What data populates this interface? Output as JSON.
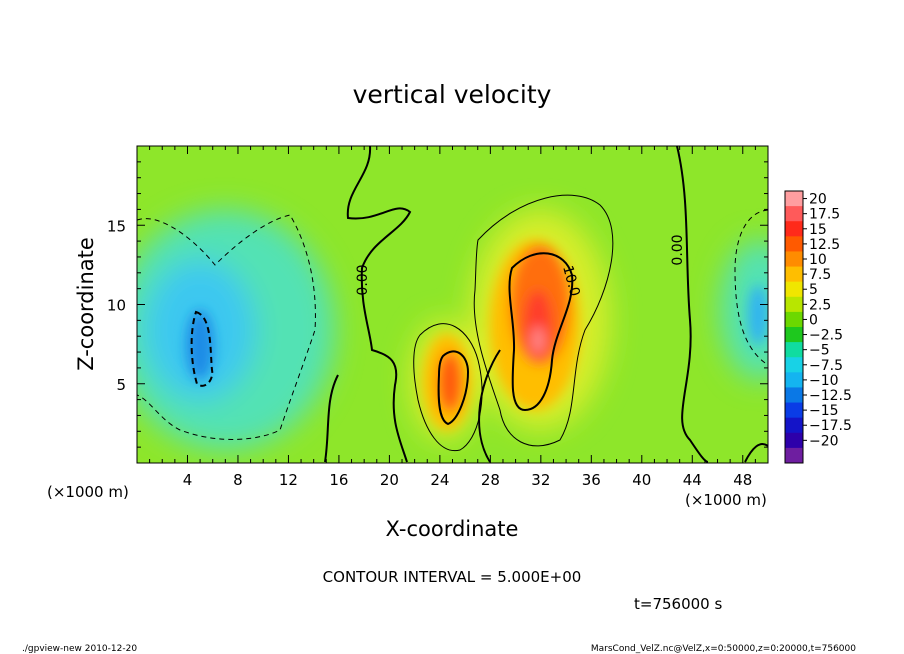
{
  "chart_data": {
    "type": "heatmap",
    "title": "vertical velocity",
    "xlabel": "X-coordinate",
    "ylabel": "Z-coordinate",
    "x_unit": "(×1000 m)",
    "xlim": [
      0,
      50
    ],
    "ylim": [
      0,
      20
    ],
    "x_ticks": [
      "4",
      "8",
      "12",
      "16",
      "20",
      "24",
      "28",
      "32",
      "36",
      "40",
      "44",
      "48"
    ],
    "y_ticks": [
      "5",
      "10",
      "15"
    ],
    "colorbar": {
      "levels": [
        "20",
        "17.5",
        "15",
        "12.5",
        "10",
        "7.5",
        "5",
        "2.5",
        "0",
        "−2.5",
        "−5",
        "−7.5",
        "−10",
        "−12.5",
        "−15",
        "−17.5",
        "−20"
      ],
      "colors": [
        "#ff9ea0",
        "#ff5a5a",
        "#ff2a1a",
        "#ff5a00",
        "#ff8c00",
        "#ffbe00",
        "#f0e600",
        "#b8e600",
        "#6cd800",
        "#1ec81e",
        "#10dca0",
        "#18d2e6",
        "#14b4f0",
        "#0a78e6",
        "#0a3ce6",
        "#1414c8",
        "#2d00aa",
        "#6e1ea0"
      ]
    },
    "contour_labels": [
      "0.00",
      "10.0",
      "0.00"
    ],
    "contour_interval": "CONTOUR INTERVAL = 5.000E+00",
    "time": "t=756000 s",
    "features": [
      {
        "kind": "updraft",
        "x": 31.5,
        "z": 9.5,
        "peak": 15
      },
      {
        "kind": "updraft",
        "x": 25,
        "z": 5.5,
        "peak": 12
      },
      {
        "kind": "downdraft",
        "x": 5,
        "z": 8,
        "peak": -10
      },
      {
        "kind": "downdraft",
        "x": 49,
        "z": 10,
        "peak": -7.5
      }
    ]
  },
  "footer": {
    "left": "./gpview-new  2010-12-20",
    "right": "MarsCond_VelZ.nc@VelZ,x=0:50000,z=0:20000,t=756000"
  }
}
